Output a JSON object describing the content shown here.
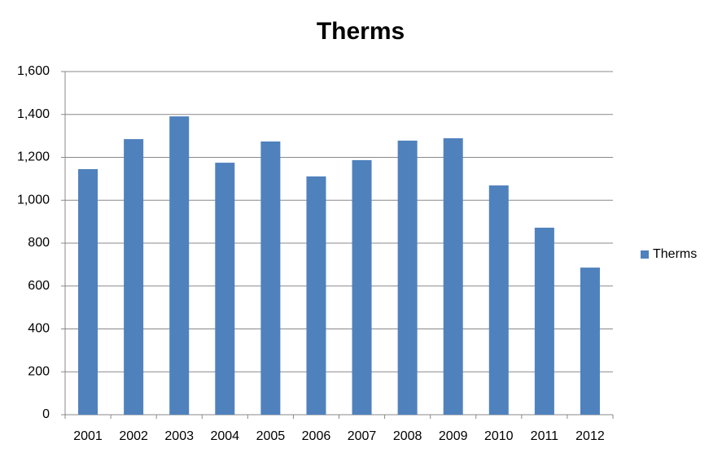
{
  "chart_data": {
    "type": "bar",
    "title": "Therms",
    "categories": [
      "2001",
      "2002",
      "2003",
      "2004",
      "2005",
      "2006",
      "2007",
      "2008",
      "2009",
      "2010",
      "2011",
      "2012"
    ],
    "series": [
      {
        "name": "Therms",
        "color": "#4f81bd",
        "values": [
          1145,
          1285,
          1391,
          1175,
          1274,
          1111,
          1187,
          1278,
          1289,
          1069,
          872,
          686
        ]
      }
    ],
    "ylim": [
      0,
      1600
    ],
    "yticks": [
      0,
      200,
      400,
      600,
      800,
      {
        "value": 1000,
        "label": "1,000"
      },
      {
        "value": 1200,
        "label": "1,200"
      },
      {
        "value": 1400,
        "label": "1,400"
      },
      {
        "value": 1600,
        "label": "1,600"
      }
    ],
    "grid": true,
    "legend": "right"
  }
}
